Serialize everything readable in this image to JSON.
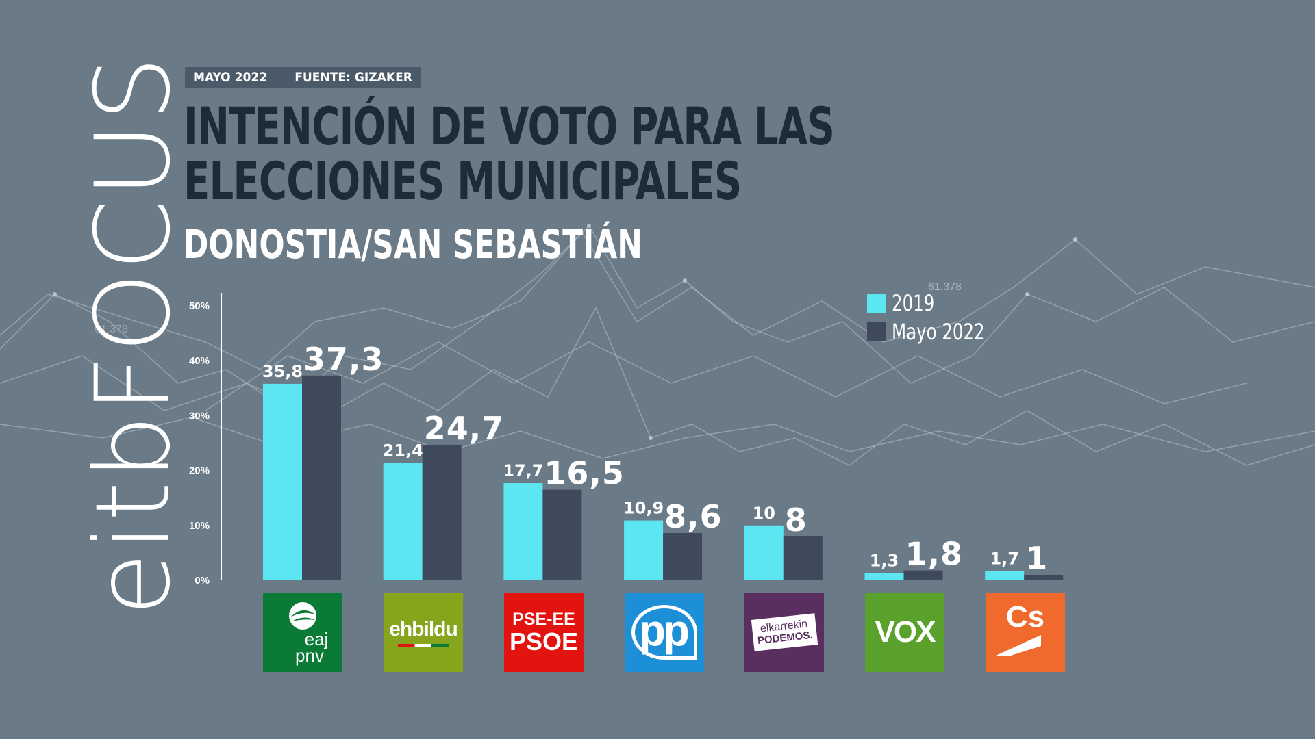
{
  "header": {
    "date": "MAYO 2022",
    "source": "FUENTE: GIZAKER"
  },
  "title": "INTENCIÓN DE VOTO PARA LAS ELECCIONES MUNICIPALES",
  "subtitle": "DONOSTIA/SAN SEBASTIÁN",
  "watermark": {
    "text_a": "eitb",
    "text_b": "FOCUS"
  },
  "background_number": "61.378",
  "legend": [
    {
      "label": "2019",
      "color": "#5ce6f2"
    },
    {
      "label": "Mayo 2022",
      "color": "#3e4a5b"
    }
  ],
  "party_logos": {
    "pnv": {
      "line1": "eaj",
      "line2": "pnv",
      "color": "#0a7a36"
    },
    "bildu": {
      "text": "ehbildu",
      "color": "#86a51c"
    },
    "psoe": {
      "line1": "PSE-EE",
      "line2": "PSOE",
      "color": "#e3140f"
    },
    "pp": {
      "text": "pp",
      "color": "#1c8fd6"
    },
    "podemos": {
      "line1": "elkarrekin",
      "line2": "PODEMOS.",
      "color": "#5a2f60"
    },
    "vox": {
      "text": "VOX",
      "color": "#5aa12b"
    },
    "cs": {
      "text": "Cs",
      "color": "#ef6a2c"
    }
  },
  "chart_data": {
    "type": "bar",
    "title": "INTENCIÓN DE VOTO PARA LAS ELECCIONES MUNICIPALES",
    "subtitle": "DONOSTIA/SAN SEBASTIÁN",
    "categories": [
      "EAJ-PNV",
      "EH Bildu",
      "PSE-EE PSOE",
      "PP",
      "Elkarrekin Podemos",
      "VOX",
      "Cs"
    ],
    "series": [
      {
        "name": "2019",
        "values": [
          35.8,
          21.4,
          17.7,
          10.9,
          10,
          1.3,
          1.7
        ],
        "labels": [
          "35,8",
          "21,4",
          "17,7",
          "10,9",
          "10",
          "1,3",
          "1,7"
        ],
        "color": "#5ce6f2"
      },
      {
        "name": "Mayo 2022",
        "values": [
          37.3,
          24.7,
          16.5,
          8.6,
          8,
          1.8,
          1
        ],
        "labels": [
          "37,3",
          "24,7",
          "16,5",
          "8,6",
          "8",
          "1,8",
          "1"
        ],
        "color": "#3e4a5b"
      }
    ],
    "y_ticks": [
      "0%",
      "10%",
      "20%",
      "30%",
      "40%",
      "50%"
    ],
    "ylim": [
      0,
      50
    ],
    "xlabel": "",
    "ylabel": "",
    "legend_position": "top-right",
    "grid": false
  }
}
